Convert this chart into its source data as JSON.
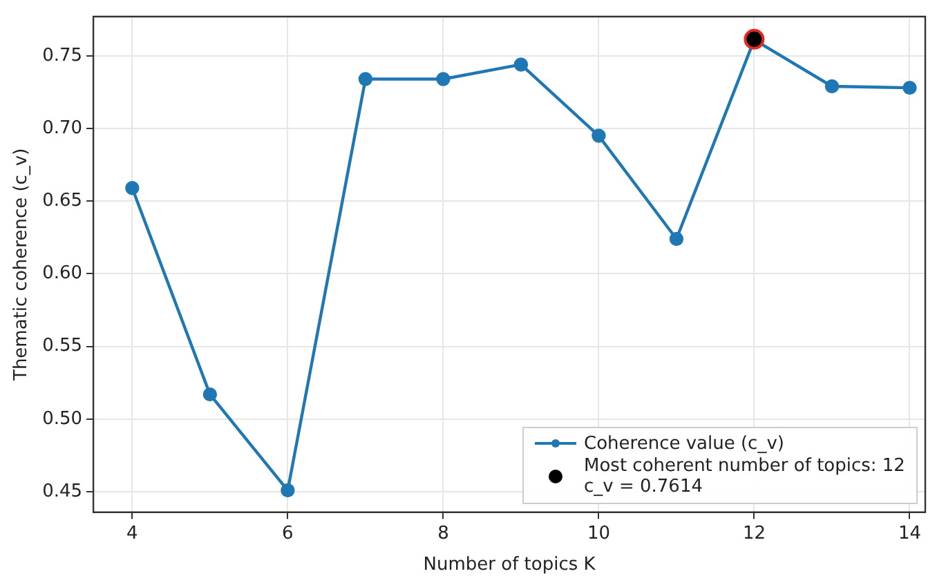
{
  "chart_data": {
    "type": "line",
    "xlabel": "Number of topics K",
    "ylabel": "Thematic coherence (c_v)",
    "xlim": [
      3.5,
      14.2
    ],
    "xticks": [
      4,
      6,
      8,
      10,
      12,
      14
    ],
    "ylim": [
      0.436,
      0.777
    ],
    "yticks": [
      {
        "value": 0.45,
        "label": "0.45"
      },
      {
        "value": 0.5,
        "label": "0.50"
      },
      {
        "value": 0.55,
        "label": "0.55"
      },
      {
        "value": 0.6,
        "label": "0.60"
      },
      {
        "value": 0.65,
        "label": "0.65"
      },
      {
        "value": 0.7,
        "label": "0.70"
      },
      {
        "value": 0.75,
        "label": "0.75"
      }
    ],
    "grid": true,
    "legend": "bottom right",
    "marker": "circle",
    "line_style": "solid",
    "series": [
      {
        "name": "Coherence value (c_v)",
        "color": "#1f77b4",
        "x": [
          4,
          5,
          6,
          7,
          8,
          9,
          10,
          11,
          12,
          13,
          14
        ],
        "values": [
          0.659,
          0.517,
          0.451,
          0.734,
          0.734,
          0.744,
          0.695,
          0.624,
          0.761,
          0.729,
          0.728
        ]
      },
      {
        "type": "scatter",
        "name": "Most coherent number of topics: 12\nc_v = 0.7614",
        "color": "#000000",
        "x": [
          12
        ],
        "values": [
          0.7614
        ]
      }
    ]
  }
}
